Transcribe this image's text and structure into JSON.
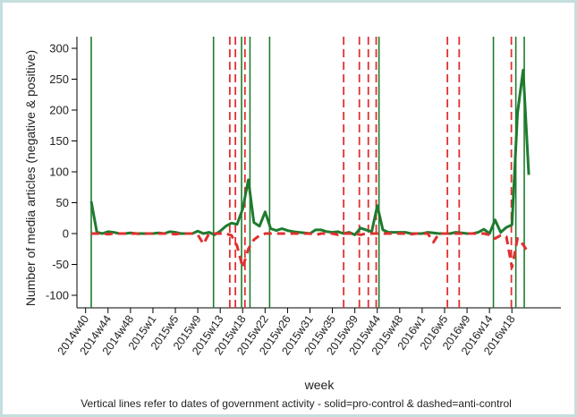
{
  "chart_data": {
    "type": "line",
    "xlabel": "week",
    "ylabel": "Number of media articles (negative & positive)",
    "caption": "Vertical lines refer to dates of government activity - solid=pro-control & dashed=anti-control",
    "ylim": [
      -110,
      310
    ],
    "yticks": [
      -100,
      -50,
      0,
      50,
      100,
      150,
      200,
      250,
      300
    ],
    "xlim": [
      0,
      84
    ],
    "x_tick_labels": [
      "2014w40",
      "2014w44",
      "2014w48",
      "2015w1",
      "2015w5",
      "2015w9",
      "2015w13",
      "2015w18",
      "2015w22",
      "2015w26",
      "2015w31",
      "2015w35",
      "2015w39",
      "2015w44",
      "2015w48",
      "2016w1",
      "2016w5",
      "2016w9",
      "2016w14",
      "2016w18"
    ],
    "series": [
      {
        "style": "solid",
        "color": "#1e7b2e",
        "points": [
          [
            1,
            52
          ],
          [
            2,
            2
          ],
          [
            3,
            0
          ],
          [
            4,
            3
          ],
          [
            5,
            2
          ],
          [
            6,
            0
          ],
          [
            7,
            0
          ],
          [
            8,
            1
          ],
          [
            9,
            0
          ],
          [
            10,
            0
          ],
          [
            11,
            0
          ],
          [
            12,
            0
          ],
          [
            13,
            1
          ],
          [
            14,
            0
          ],
          [
            15,
            3
          ],
          [
            16,
            2
          ],
          [
            17,
            0
          ],
          [
            18,
            0
          ],
          [
            19,
            0
          ],
          [
            20,
            4
          ],
          [
            21,
            0
          ],
          [
            22,
            2
          ],
          [
            23,
            -2
          ],
          [
            24,
            4
          ],
          [
            25,
            12
          ],
          [
            26,
            17
          ],
          [
            27,
            15
          ],
          [
            28,
            40
          ],
          [
            29,
            87
          ],
          [
            30,
            18
          ],
          [
            31,
            12
          ],
          [
            32,
            35
          ],
          [
            33,
            8
          ],
          [
            34,
            5
          ],
          [
            35,
            8
          ],
          [
            36,
            5
          ],
          [
            37,
            3
          ],
          [
            38,
            2
          ],
          [
            39,
            1
          ],
          [
            40,
            0
          ],
          [
            41,
            6
          ],
          [
            42,
            6
          ],
          [
            43,
            3
          ],
          [
            44,
            2
          ],
          [
            45,
            3
          ],
          [
            46,
            0
          ],
          [
            47,
            2
          ],
          [
            48,
            -2
          ],
          [
            49,
            9
          ],
          [
            50,
            6
          ],
          [
            51,
            3
          ],
          [
            52,
            45
          ],
          [
            53,
            6
          ],
          [
            54,
            2
          ],
          [
            55,
            2
          ],
          [
            56,
            2
          ],
          [
            57,
            2
          ],
          [
            58,
            0
          ],
          [
            59,
            0
          ],
          [
            60,
            0
          ],
          [
            61,
            2
          ],
          [
            62,
            1
          ],
          [
            63,
            0
          ],
          [
            64,
            0
          ],
          [
            65,
            0
          ],
          [
            66,
            2
          ],
          [
            67,
            1
          ],
          [
            68,
            0
          ],
          [
            69,
            0
          ],
          [
            70,
            2
          ],
          [
            71,
            7
          ],
          [
            72,
            0
          ],
          [
            73,
            22
          ],
          [
            74,
            2
          ],
          [
            75,
            10
          ],
          [
            76,
            14
          ],
          [
            77,
            195
          ],
          [
            78,
            265
          ],
          [
            79,
            95
          ]
        ]
      },
      {
        "style": "dashed",
        "color": "#e03030",
        "points": [
          [
            1,
            0
          ],
          [
            2,
            0
          ],
          [
            3,
            0
          ],
          [
            4,
            -1
          ],
          [
            5,
            0
          ],
          [
            6,
            0
          ],
          [
            7,
            0
          ],
          [
            8,
            0
          ],
          [
            9,
            0
          ],
          [
            10,
            -1
          ],
          [
            11,
            0
          ],
          [
            12,
            0
          ],
          [
            13,
            0
          ],
          [
            14,
            0
          ],
          [
            15,
            0
          ],
          [
            16,
            -1
          ],
          [
            17,
            0
          ],
          [
            18,
            0
          ],
          [
            19,
            0
          ],
          [
            20,
            -2
          ],
          [
            21,
            -17
          ],
          [
            22,
            0
          ],
          [
            23,
            0
          ],
          [
            24,
            0
          ],
          [
            25,
            0
          ],
          [
            26,
            -3
          ],
          [
            27,
            -20
          ],
          [
            28,
            -55
          ],
          [
            29,
            -25
          ],
          [
            30,
            -10
          ],
          [
            31,
            -3
          ],
          [
            32,
            0
          ],
          [
            33,
            0
          ],
          [
            34,
            0
          ],
          [
            35,
            0
          ],
          [
            36,
            0
          ],
          [
            37,
            0
          ],
          [
            38,
            0
          ],
          [
            39,
            0
          ],
          [
            40,
            0
          ],
          [
            41,
            -2
          ],
          [
            42,
            0
          ],
          [
            43,
            0
          ],
          [
            44,
            0
          ],
          [
            45,
            -2
          ],
          [
            46,
            0
          ],
          [
            47,
            0
          ],
          [
            48,
            0
          ],
          [
            49,
            -2
          ],
          [
            50,
            0
          ],
          [
            51,
            0
          ],
          [
            52,
            0
          ],
          [
            53,
            0
          ],
          [
            54,
            0
          ],
          [
            55,
            0
          ],
          [
            56,
            0
          ],
          [
            57,
            0
          ],
          [
            58,
            -1
          ],
          [
            59,
            0
          ],
          [
            60,
            0
          ],
          [
            61,
            0
          ],
          [
            62,
            -14
          ],
          [
            63,
            0
          ],
          [
            64,
            0
          ],
          [
            65,
            0
          ],
          [
            66,
            0
          ],
          [
            67,
            0
          ],
          [
            68,
            0
          ],
          [
            69,
            0
          ],
          [
            70,
            0
          ],
          [
            71,
            0
          ],
          [
            72,
            -2
          ],
          [
            73,
            -8
          ],
          [
            74,
            -3
          ],
          [
            75,
            -5
          ],
          [
            76,
            -55
          ],
          [
            77,
            -8
          ],
          [
            78,
            -18
          ],
          [
            79,
            -32
          ]
        ]
      }
    ],
    "vertical_lines": [
      {
        "x": 1,
        "style": "solid",
        "color": "#1e7b2e"
      },
      {
        "x": 22.8,
        "style": "solid",
        "color": "#1e7b2e"
      },
      {
        "x": 25.7,
        "style": "dashed",
        "color": "#e03030"
      },
      {
        "x": 26.7,
        "style": "dashed",
        "color": "#e03030"
      },
      {
        "x": 27.8,
        "style": "solid",
        "color": "#1e7b2e"
      },
      {
        "x": 28.4,
        "style": "dashed",
        "color": "#e03030"
      },
      {
        "x": 29.3,
        "style": "solid",
        "color": "#1e7b2e"
      },
      {
        "x": 32.8,
        "style": "solid",
        "color": "#1e7b2e"
      },
      {
        "x": 46.0,
        "style": "dashed",
        "color": "#e03030"
      },
      {
        "x": 48.8,
        "style": "dashed",
        "color": "#e03030"
      },
      {
        "x": 50.4,
        "style": "dashed",
        "color": "#e03030"
      },
      {
        "x": 51.8,
        "style": "dashed",
        "color": "#e03030"
      },
      {
        "x": 52.3,
        "style": "solid",
        "color": "#1e7b2e"
      },
      {
        "x": 64.5,
        "style": "dashed",
        "color": "#e03030"
      },
      {
        "x": 66.6,
        "style": "dashed",
        "color": "#e03030"
      },
      {
        "x": 72.7,
        "style": "solid",
        "color": "#1e7b2e"
      },
      {
        "x": 75.9,
        "style": "dashed",
        "color": "#e03030"
      },
      {
        "x": 76.7,
        "style": "solid",
        "color": "#1e7b2e"
      },
      {
        "x": 78.2,
        "style": "solid",
        "color": "#1e7b2e"
      }
    ]
  }
}
